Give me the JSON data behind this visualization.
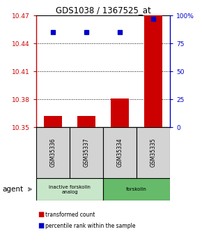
{
  "title": "GDS1038 / 1367525_at",
  "samples": [
    "GSM35336",
    "GSM35337",
    "GSM35334",
    "GSM35335"
  ],
  "bar_values": [
    10.362,
    10.362,
    10.381,
    10.47
  ],
  "percentile_values": [
    85,
    85,
    85,
    97
  ],
  "ylim": [
    10.35,
    10.47
  ],
  "yticks_left": [
    10.35,
    10.38,
    10.41,
    10.44,
    10.47
  ],
  "ytick_labels_left": [
    "10.35",
    "10.38",
    "10.41",
    "10.44",
    "10.47"
  ],
  "right_yticks": [
    0,
    25,
    50,
    75,
    100
  ],
  "right_ytick_labels": [
    "0",
    "25",
    "50",
    "75",
    "100%"
  ],
  "bar_color": "#cc0000",
  "blue_color": "#0000cc",
  "bar_width": 0.55,
  "grid_ticks": [
    10.38,
    10.41,
    10.44
  ],
  "groups": [
    {
      "label": "inactive forskolin\nanalog",
      "start": 0,
      "end": 1,
      "color": "#c8e6c9"
    },
    {
      "label": "forskolin",
      "start": 2,
      "end": 3,
      "color": "#66bb6a"
    }
  ],
  "legend_red": "transformed count",
  "legend_blue": "percentile rank within the sample",
  "agent_label": "agent"
}
